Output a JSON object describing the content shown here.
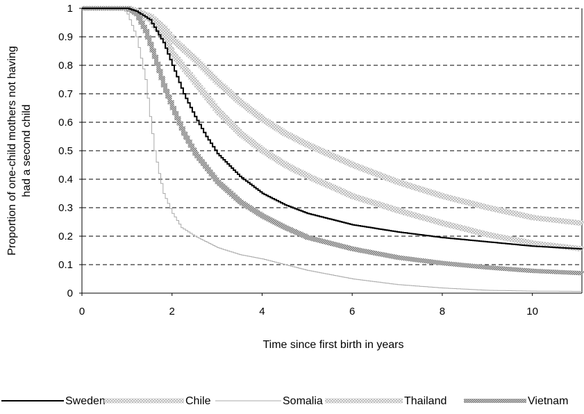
{
  "chart_data": {
    "type": "line",
    "xlabel": "Time since first birth in years",
    "ylabel_lines": [
      "Proportion of one-child mothers not having",
      "had a second child"
    ],
    "xlim": [
      0,
      11.1
    ],
    "ylim": [
      0,
      1
    ],
    "x_ticks": [
      "0",
      "2",
      "4",
      "6",
      "8",
      "10"
    ],
    "y_ticks": [
      "0",
      "0.1",
      "0.2",
      "0.3",
      "0.4",
      "0.5",
      "0.6",
      "0.7",
      "0.8",
      "0.9",
      "1"
    ],
    "gridlines": "horizontal-dashed",
    "legend_position": "bottom",
    "series": [
      {
        "name": "Sweden",
        "color": "#000000",
        "style": "solid-black",
        "points": [
          [
            0,
            1
          ],
          [
            1,
            1
          ],
          [
            1.2,
            0.99
          ],
          [
            1.5,
            0.96
          ],
          [
            1.8,
            0.88
          ],
          [
            2,
            0.8
          ],
          [
            2.25,
            0.7
          ],
          [
            2.5,
            0.62
          ],
          [
            2.75,
            0.55
          ],
          [
            3,
            0.49
          ],
          [
            3.5,
            0.41
          ],
          [
            4,
            0.35
          ],
          [
            4.5,
            0.31
          ],
          [
            5,
            0.28
          ],
          [
            6,
            0.24
          ],
          [
            7,
            0.215
          ],
          [
            8,
            0.195
          ],
          [
            9,
            0.18
          ],
          [
            10,
            0.165
          ],
          [
            11.1,
            0.155
          ]
        ]
      },
      {
        "name": "Chile",
        "color": "#d4d4d4",
        "style": "light-dotted",
        "points": [
          [
            0,
            1
          ],
          [
            1,
            1
          ],
          [
            1.2,
            0.99
          ],
          [
            1.5,
            0.96
          ],
          [
            1.8,
            0.9
          ],
          [
            2,
            0.84
          ],
          [
            2.5,
            0.74
          ],
          [
            3,
            0.64
          ],
          [
            3.5,
            0.56
          ],
          [
            4,
            0.5
          ],
          [
            4.5,
            0.45
          ],
          [
            5,
            0.41
          ],
          [
            6,
            0.34
          ],
          [
            7,
            0.29
          ],
          [
            8,
            0.245
          ],
          [
            9,
            0.205
          ],
          [
            10,
            0.175
          ],
          [
            11.1,
            0.155
          ]
        ]
      },
      {
        "name": "Somalia",
        "color": "#a8a8a8",
        "style": "thin-gray",
        "points": [
          [
            0,
            1
          ],
          [
            0.9,
            1
          ],
          [
            1,
            0.98
          ],
          [
            1.2,
            0.9
          ],
          [
            1.4,
            0.75
          ],
          [
            1.5,
            0.62
          ],
          [
            1.6,
            0.5
          ],
          [
            1.7,
            0.42
          ],
          [
            1.8,
            0.35
          ],
          [
            2,
            0.28
          ],
          [
            2.2,
            0.23
          ],
          [
            2.5,
            0.2
          ],
          [
            3,
            0.16
          ],
          [
            3.5,
            0.135
          ],
          [
            4,
            0.12
          ],
          [
            4.5,
            0.1
          ],
          [
            5,
            0.08
          ],
          [
            6,
            0.05
          ],
          [
            7,
            0.03
          ],
          [
            8,
            0.018
          ],
          [
            9,
            0.01
          ],
          [
            10,
            0.007
          ],
          [
            11.1,
            0.006
          ]
        ]
      },
      {
        "name": "Thailand",
        "color": "#d4d4d4",
        "style": "light-dotted",
        "points": [
          [
            0,
            1
          ],
          [
            1,
            1
          ],
          [
            1.2,
            0.99
          ],
          [
            1.5,
            0.97
          ],
          [
            1.8,
            0.93
          ],
          [
            2,
            0.89
          ],
          [
            2.5,
            0.82
          ],
          [
            3,
            0.74
          ],
          [
            3.5,
            0.67
          ],
          [
            4,
            0.61
          ],
          [
            4.5,
            0.56
          ],
          [
            5,
            0.52
          ],
          [
            6,
            0.45
          ],
          [
            7,
            0.39
          ],
          [
            8,
            0.34
          ],
          [
            9,
            0.3
          ],
          [
            10,
            0.265
          ],
          [
            11.1,
            0.245
          ]
        ]
      },
      {
        "name": "Vietnam",
        "color": "#9a9a9a",
        "style": "dense-dotted",
        "points": [
          [
            0,
            1
          ],
          [
            1,
            1
          ],
          [
            1.2,
            0.98
          ],
          [
            1.4,
            0.92
          ],
          [
            1.6,
            0.83
          ],
          [
            1.8,
            0.73
          ],
          [
            2,
            0.65
          ],
          [
            2.25,
            0.56
          ],
          [
            2.5,
            0.49
          ],
          [
            3,
            0.39
          ],
          [
            3.5,
            0.32
          ],
          [
            4,
            0.27
          ],
          [
            4.5,
            0.23
          ],
          [
            5,
            0.195
          ],
          [
            6,
            0.155
          ],
          [
            7,
            0.125
          ],
          [
            8,
            0.105
          ],
          [
            9,
            0.09
          ],
          [
            10,
            0.078
          ],
          [
            11.1,
            0.07
          ]
        ]
      }
    ]
  }
}
